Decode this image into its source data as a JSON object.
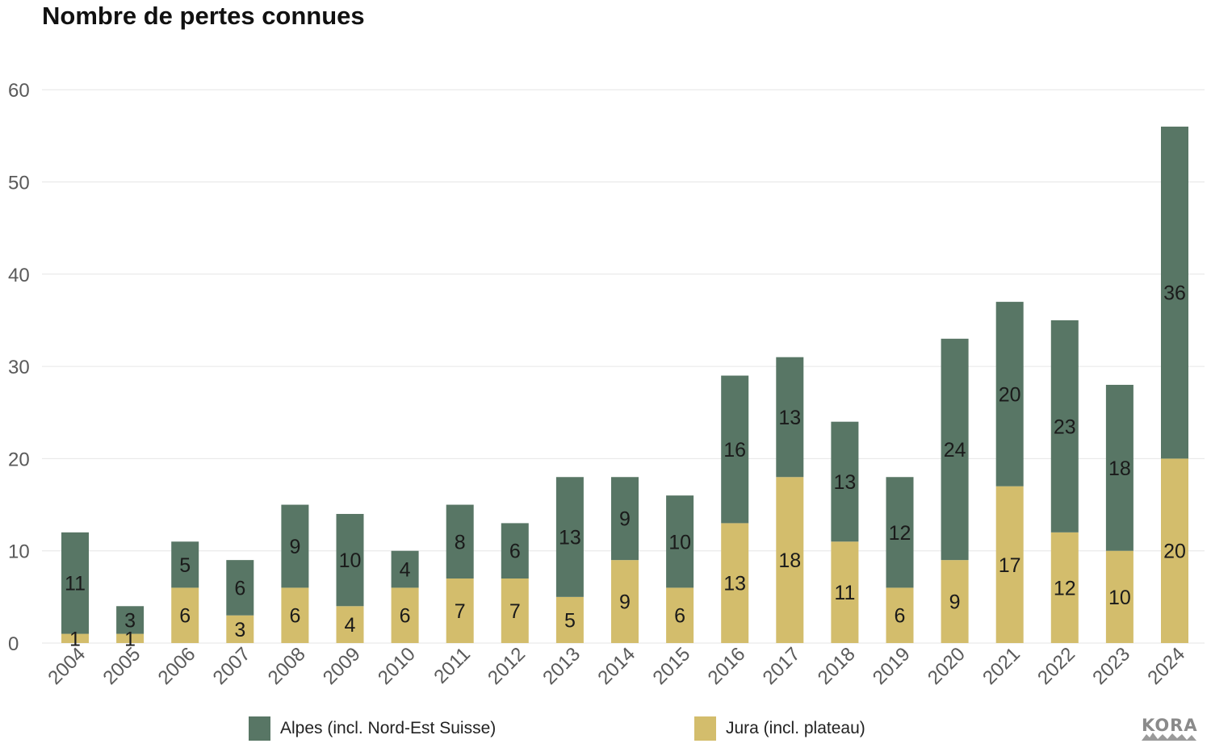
{
  "title": "Nombre de pertes connues",
  "legend": {
    "alpes_label": "Alpes (incl. Nord-Est Suisse)",
    "jura_label": "Jura (incl. plateau)"
  },
  "logo": {
    "text": "KORA"
  },
  "colors": {
    "alpes": "#587665",
    "jura": "#d3bd6c",
    "grid": "#e6e6e6",
    "axis_text": "#5a5a5a",
    "label_text": "#1a1a1a"
  },
  "chart_data": {
    "type": "bar",
    "stacked": true,
    "title": "Nombre de pertes connues",
    "xlabel": "",
    "ylabel": "",
    "ylim": [
      0,
      60
    ],
    "yticks": [
      0,
      10,
      20,
      30,
      40,
      50,
      60
    ],
    "grid": true,
    "legend_position": "bottom",
    "categories": [
      "2004",
      "2005",
      "2006",
      "2007",
      "2008",
      "2009",
      "2010",
      "2011",
      "2012",
      "2013",
      "2014",
      "2015",
      "2016",
      "2017",
      "2018",
      "2019",
      "2020",
      "2021",
      "2022",
      "2023",
      "2024"
    ],
    "series": [
      {
        "name": "Jura (incl. plateau)",
        "values": [
          1,
          1,
          6,
          3,
          6,
          4,
          6,
          7,
          7,
          5,
          9,
          6,
          13,
          18,
          11,
          6,
          9,
          17,
          12,
          10,
          20
        ]
      },
      {
        "name": "Alpes (incl. Nord-Est Suisse)",
        "values": [
          11,
          3,
          5,
          6,
          9,
          10,
          4,
          8,
          6,
          13,
          9,
          10,
          16,
          13,
          13,
          12,
          24,
          20,
          23,
          18,
          36
        ]
      }
    ]
  }
}
